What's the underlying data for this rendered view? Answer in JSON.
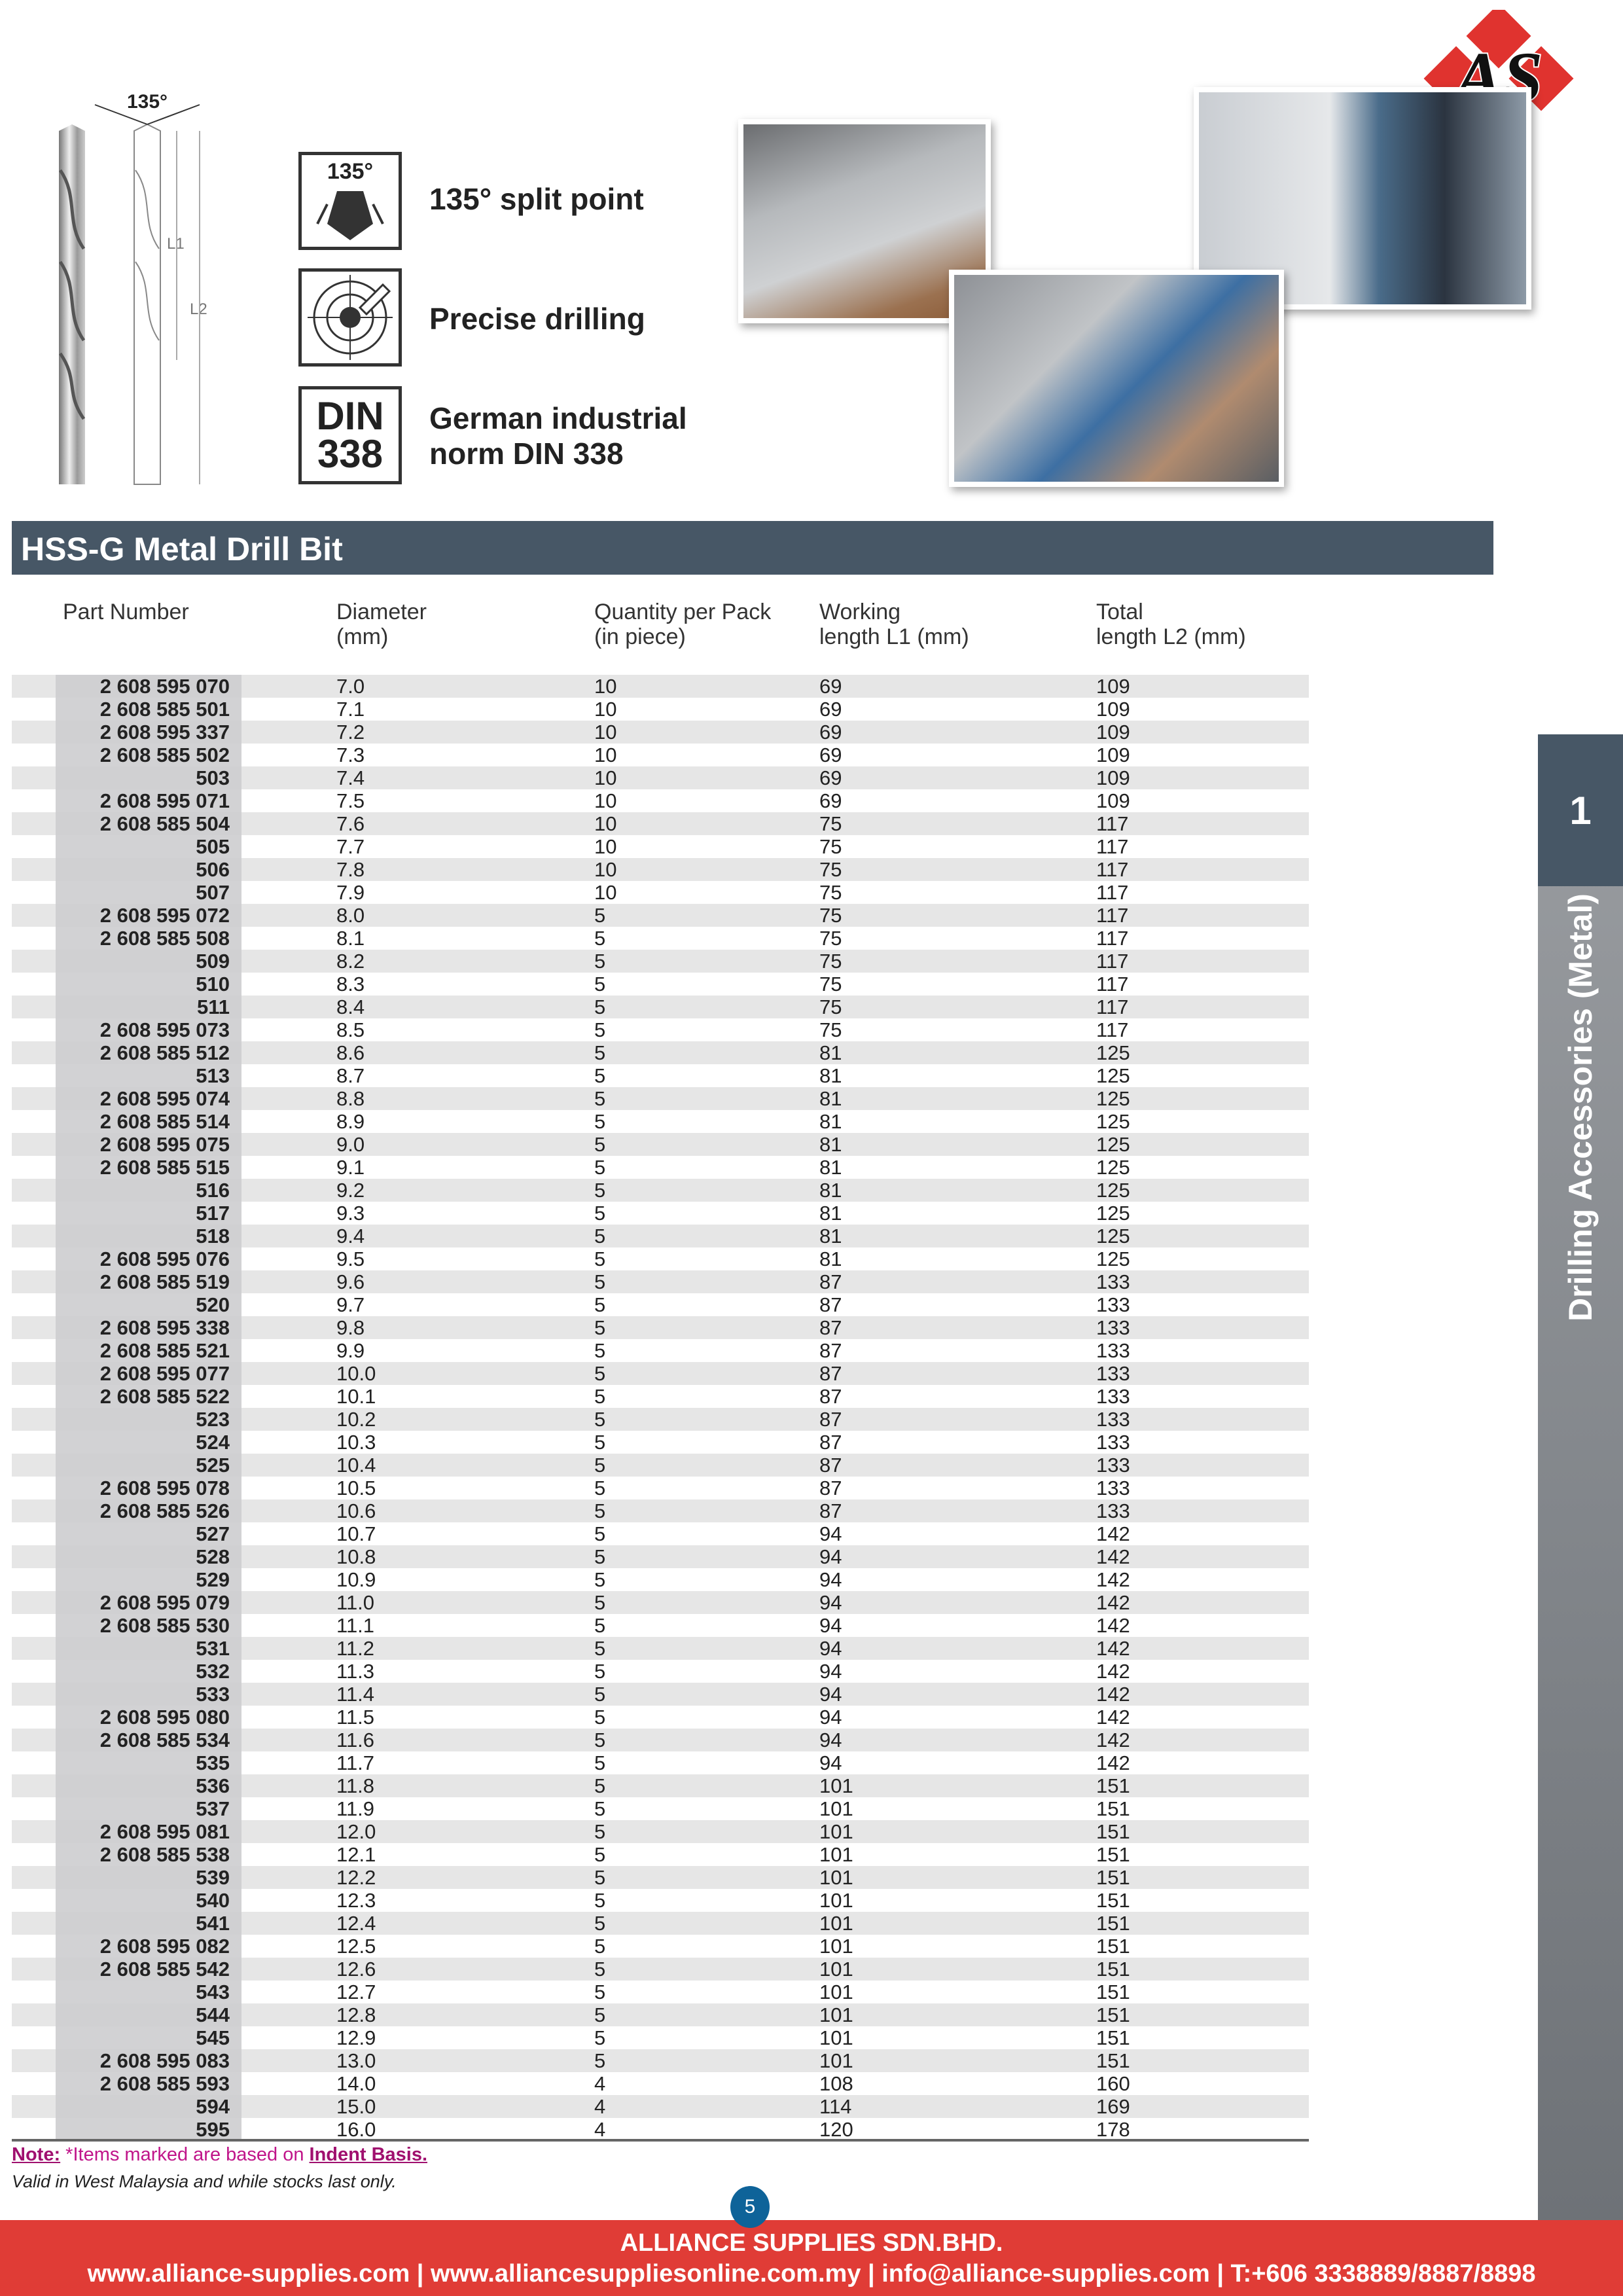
{
  "logo": {
    "text": "AS",
    "color": "#e0332f"
  },
  "drill_diagram": {
    "angle": "135°",
    "l1": "L1",
    "l2": "L2"
  },
  "features": [
    {
      "icon": "split-point-icon",
      "badge": "135°",
      "label": "135° split point"
    },
    {
      "icon": "target-icon",
      "label": "Precise drilling"
    },
    {
      "icon": "din-icon",
      "badge": "DIN\n338",
      "label": "German industrial norm DIN 338"
    }
  ],
  "section_title": "HSS-G Metal Drill Bit",
  "table": {
    "headers": [
      [
        "Part Number",
        ""
      ],
      [
        "Diameter",
        "(mm)"
      ],
      [
        "Quantity per Pack",
        "(in piece)"
      ],
      [
        "Working",
        "length L1 (mm)"
      ],
      [
        "Total",
        "length L2 (mm)"
      ]
    ],
    "rows": [
      [
        "2 608 595 070",
        "7.0",
        "10",
        "69",
        "109"
      ],
      [
        "2 608 585 501",
        "7.1",
        "10",
        "69",
        "109"
      ],
      [
        "2 608 595 337",
        "7.2",
        "10",
        "69",
        "109"
      ],
      [
        "2 608 585 502",
        "7.3",
        "10",
        "69",
        "109"
      ],
      [
        "503",
        "7.4",
        "10",
        "69",
        "109"
      ],
      [
        "2 608 595 071",
        "7.5",
        "10",
        "69",
        "109"
      ],
      [
        "2 608 585 504",
        "7.6",
        "10",
        "75",
        "117"
      ],
      [
        "505",
        "7.7",
        "10",
        "75",
        "117"
      ],
      [
        "506",
        "7.8",
        "10",
        "75",
        "117"
      ],
      [
        "507",
        "7.9",
        "10",
        "75",
        "117"
      ],
      [
        "2 608 595 072",
        "8.0",
        "5",
        "75",
        "117"
      ],
      [
        "2 608 585 508",
        "8.1",
        "5",
        "75",
        "117"
      ],
      [
        "509",
        "8.2",
        "5",
        "75",
        "117"
      ],
      [
        "510",
        "8.3",
        "5",
        "75",
        "117"
      ],
      [
        "511",
        "8.4",
        "5",
        "75",
        "117"
      ],
      [
        "2 608 595 073",
        "8.5",
        "5",
        "75",
        "117"
      ],
      [
        "2 608 585 512",
        "8.6",
        "5",
        "81",
        "125"
      ],
      [
        "513",
        "8.7",
        "5",
        "81",
        "125"
      ],
      [
        "2 608 595 074",
        "8.8",
        "5",
        "81",
        "125"
      ],
      [
        "2 608 585 514",
        "8.9",
        "5",
        "81",
        "125"
      ],
      [
        "2 608 595 075",
        "9.0",
        "5",
        "81",
        "125"
      ],
      [
        "2 608 585 515",
        "9.1",
        "5",
        "81",
        "125"
      ],
      [
        "516",
        "9.2",
        "5",
        "81",
        "125"
      ],
      [
        "517",
        "9.3",
        "5",
        "81",
        "125"
      ],
      [
        "518",
        "9.4",
        "5",
        "81",
        "125"
      ],
      [
        "2 608 595 076",
        "9.5",
        "5",
        "81",
        "125"
      ],
      [
        "2 608 585 519",
        "9.6",
        "5",
        "87",
        "133"
      ],
      [
        "520",
        "9.7",
        "5",
        "87",
        "133"
      ],
      [
        "2 608 595 338",
        "9.8",
        "5",
        "87",
        "133"
      ],
      [
        "2 608 585 521",
        "9.9",
        "5",
        "87",
        "133"
      ],
      [
        "2 608 595 077",
        "10.0",
        "5",
        "87",
        "133"
      ],
      [
        "2 608 585 522",
        "10.1",
        "5",
        "87",
        "133"
      ],
      [
        "523",
        "10.2",
        "5",
        "87",
        "133"
      ],
      [
        "524",
        "10.3",
        "5",
        "87",
        "133"
      ],
      [
        "525",
        "10.4",
        "5",
        "87",
        "133"
      ],
      [
        "2 608 595 078",
        "10.5",
        "5",
        "87",
        "133"
      ],
      [
        "2 608 585 526",
        "10.6",
        "5",
        "87",
        "133"
      ],
      [
        "527",
        "10.7",
        "5",
        "94",
        "142"
      ],
      [
        "528",
        "10.8",
        "5",
        "94",
        "142"
      ],
      [
        "529",
        "10.9",
        "5",
        "94",
        "142"
      ],
      [
        "2 608 595 079",
        "11.0",
        "5",
        "94",
        "142"
      ],
      [
        "2 608 585 530",
        "11.1",
        "5",
        "94",
        "142"
      ],
      [
        "531",
        "11.2",
        "5",
        "94",
        "142"
      ],
      [
        "532",
        "11.3",
        "5",
        "94",
        "142"
      ],
      [
        "533",
        "11.4",
        "5",
        "94",
        "142"
      ],
      [
        "2 608 595 080",
        "11.5",
        "5",
        "94",
        "142"
      ],
      [
        "2 608 585 534",
        "11.6",
        "5",
        "94",
        "142"
      ],
      [
        "535",
        "11.7",
        "5",
        "94",
        "142"
      ],
      [
        "536",
        "11.8",
        "5",
        "101",
        "151"
      ],
      [
        "537",
        "11.9",
        "5",
        "101",
        "151"
      ],
      [
        "2 608 595 081",
        "12.0",
        "5",
        "101",
        "151"
      ],
      [
        "2 608 585 538",
        "12.1",
        "5",
        "101",
        "151"
      ],
      [
        "539",
        "12.2",
        "5",
        "101",
        "151"
      ],
      [
        "540",
        "12.3",
        "5",
        "101",
        "151"
      ],
      [
        "541",
        "12.4",
        "5",
        "101",
        "151"
      ],
      [
        "2 608 595 082",
        "12.5",
        "5",
        "101",
        "151"
      ],
      [
        "2 608 585 542",
        "12.6",
        "5",
        "101",
        "151"
      ],
      [
        "543",
        "12.7",
        "5",
        "101",
        "151"
      ],
      [
        "544",
        "12.8",
        "5",
        "101",
        "151"
      ],
      [
        "545",
        "12.9",
        "5",
        "101",
        "151"
      ],
      [
        "2 608 595 083",
        "13.0",
        "5",
        "101",
        "151"
      ],
      [
        "2 608 585 593",
        "14.0",
        "4",
        "108",
        "160"
      ],
      [
        "594",
        "15.0",
        "4",
        "114",
        "169"
      ],
      [
        "595",
        "16.0",
        "4",
        "120",
        "178"
      ]
    ]
  },
  "note": {
    "label": "Note:",
    "text": " *Items marked are based on ",
    "link": "Indent Basis.",
    "validity": "Valid in West Malaysia and while stocks last only."
  },
  "side_tab": {
    "number": "1",
    "label": "Drilling Accessories (Metal)"
  },
  "page_number": "5",
  "footer": {
    "company": "ALLIANCE SUPPLIES SDN.BHD.",
    "contact": "www.alliance-supplies.com | www.alliancesuppliesonline.com.my | info@alliance-supplies.com | T:+606 3338889/8887/8898"
  },
  "colors": {
    "header_bar": "#475766",
    "footer": "#e03c36",
    "note": "#c0158a",
    "page_badge": "#0e6399"
  }
}
